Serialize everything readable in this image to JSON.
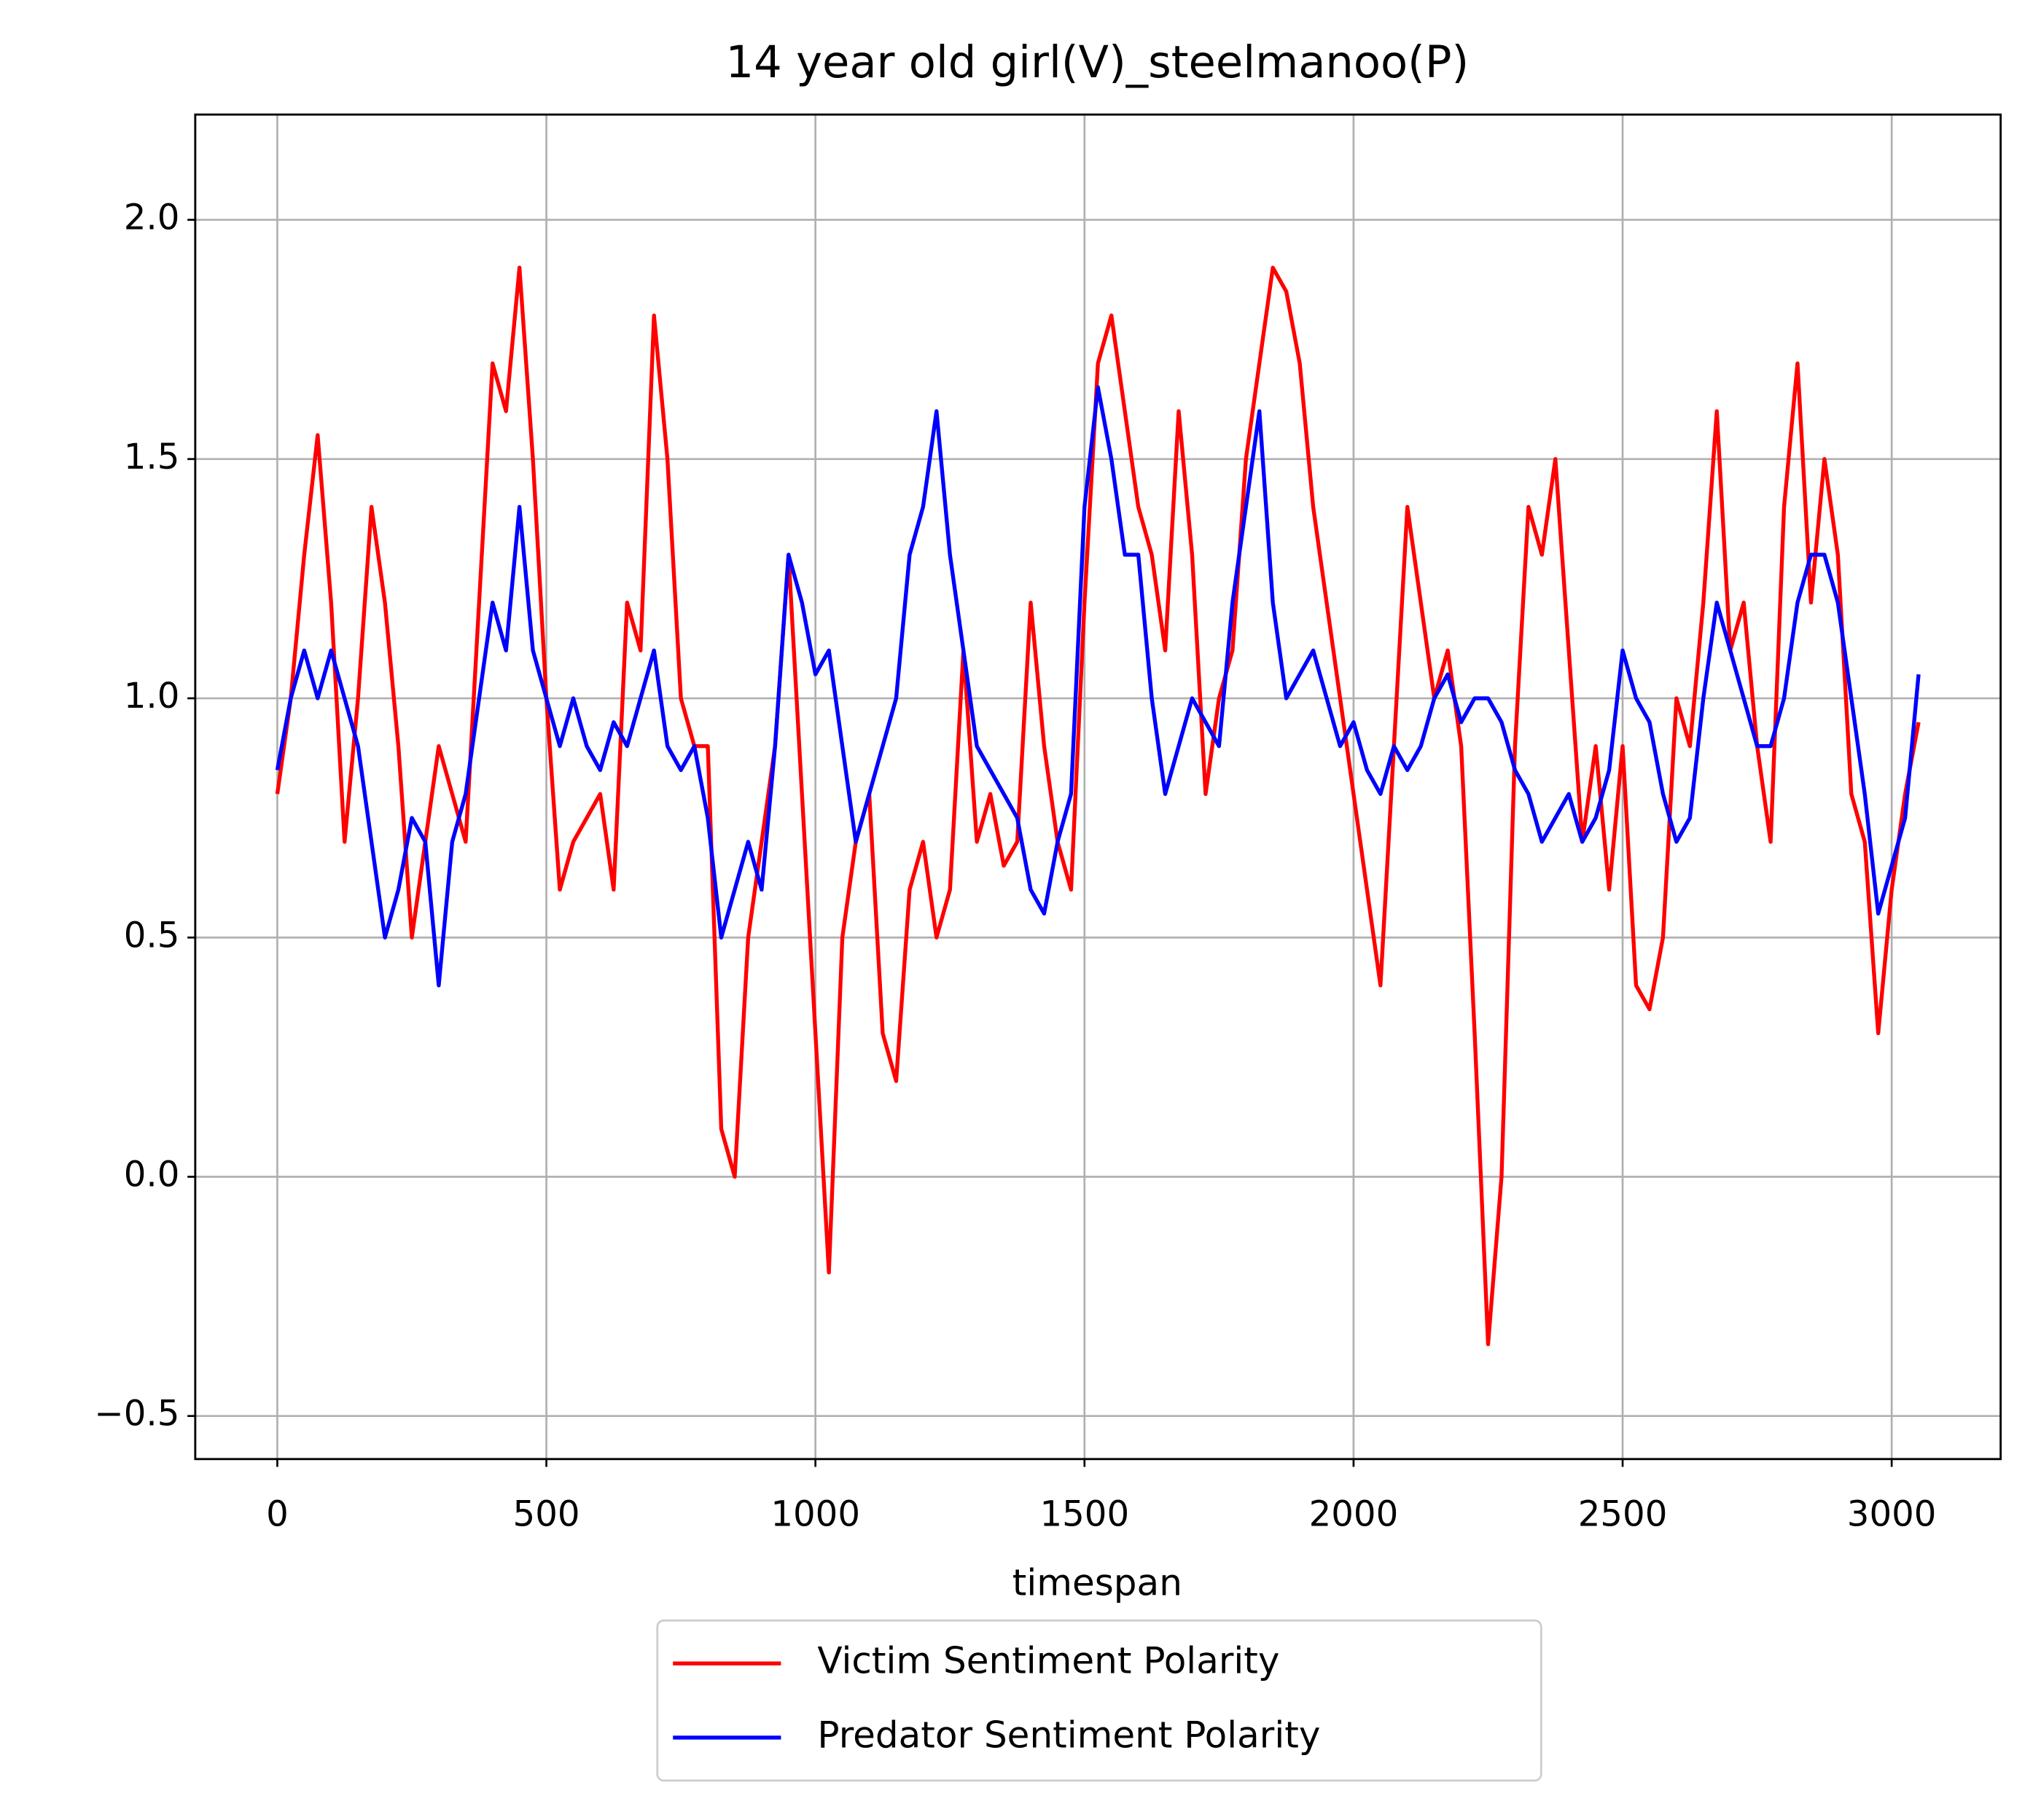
{
  "chart_data": {
    "type": "line",
    "title": "14 year old girl(V)_steelmanoo(P)",
    "x_label": "timespan",
    "x": [
      0,
      25,
      50,
      75,
      100,
      125,
      150,
      175,
      200,
      225,
      250,
      275,
      300,
      325,
      350,
      375,
      400,
      425,
      450,
      475,
      500,
      525,
      550,
      575,
      600,
      625,
      650,
      675,
      700,
      725,
      750,
      775,
      800,
      825,
      850,
      875,
      900,
      925,
      950,
      975,
      1000,
      1025,
      1050,
      1075,
      1100,
      1125,
      1150,
      1175,
      1200,
      1225,
      1250,
      1275,
      1300,
      1325,
      1350,
      1375,
      1400,
      1425,
      1450,
      1475,
      1500,
      1525,
      1550,
      1575,
      1600,
      1625,
      1650,
      1675,
      1700,
      1725,
      1750,
      1775,
      1800,
      1825,
      1850,
      1875,
      1900,
      1925,
      1950,
      1975,
      2000,
      2025,
      2050,
      2075,
      2100,
      2125,
      2150,
      2175,
      2200,
      2225,
      2250,
      2275,
      2300,
      2325,
      2350,
      2375,
      2400,
      2425,
      2450,
      2475,
      2500,
      2525,
      2550,
      2575,
      2600,
      2625,
      2650,
      2675,
      2700,
      2725,
      2750,
      2775,
      2800,
      2825,
      2850,
      2875,
      2900,
      2925,
      2950,
      2975,
      3000,
      3025,
      3050
    ],
    "series": [
      {
        "name": "Victim Sentiment Polarity",
        "color": "#ff0000",
        "values": [
          0.8,
          1.0,
          1.3,
          1.55,
          1.2,
          0.7,
          1.0,
          1.4,
          1.2,
          0.9,
          0.5,
          0.7,
          0.9,
          0.8,
          0.7,
          1.2,
          1.7,
          1.6,
          1.9,
          1.5,
          1.0,
          0.6,
          0.7,
          0.75,
          0.8,
          0.6,
          1.2,
          1.1,
          1.8,
          1.5,
          1.0,
          0.9,
          0.9,
          0.1,
          0.0,
          0.5,
          0.7,
          0.9,
          1.3,
          0.8,
          0.3,
          -0.2,
          0.5,
          0.7,
          0.8,
          0.3,
          0.2,
          0.6,
          0.7,
          0.5,
          0.6,
          1.1,
          0.7,
          0.8,
          0.65,
          0.7,
          1.2,
          0.9,
          0.7,
          0.6,
          1.2,
          1.7,
          1.8,
          1.6,
          1.4,
          1.3,
          1.1,
          1.6,
          1.3,
          0.8,
          1.0,
          1.1,
          1.5,
          1.7,
          1.9,
          1.85,
          1.7,
          1.4,
          1.2,
          1.0,
          0.8,
          0.6,
          0.4,
          0.9,
          1.4,
          1.2,
          1.0,
          1.1,
          0.9,
          0.3,
          -0.35,
          0.0,
          0.9,
          1.4,
          1.3,
          1.5,
          1.1,
          0.7,
          0.9,
          0.6,
          0.9,
          0.4,
          0.35,
          0.5,
          1.0,
          0.9,
          1.2,
          1.6,
          1.1,
          1.2,
          0.9,
          0.7,
          1.4,
          1.7,
          1.2,
          1.5,
          1.3,
          0.8,
          0.7,
          0.3,
          0.6,
          0.8,
          0.95
        ]
      },
      {
        "name": "Predator Sentiment Polarity",
        "color": "#0000ff",
        "values": [
          0.85,
          1.0,
          1.1,
          1.0,
          1.1,
          1.0,
          0.9,
          0.7,
          0.5,
          0.6,
          0.75,
          0.7,
          0.4,
          0.7,
          0.8,
          1.0,
          1.2,
          1.1,
          1.4,
          1.1,
          1.0,
          0.9,
          1.0,
          0.9,
          0.85,
          0.95,
          0.9,
          1.0,
          1.1,
          0.9,
          0.85,
          0.9,
          0.75,
          0.5,
          0.6,
          0.7,
          0.6,
          0.9,
          1.3,
          1.2,
          1.05,
          1.1,
          0.9,
          0.7,
          0.8,
          0.9,
          1.0,
          1.3,
          1.4,
          1.6,
          1.3,
          1.1,
          0.9,
          0.85,
          0.8,
          0.75,
          0.6,
          0.55,
          0.7,
          0.8,
          1.4,
          1.65,
          1.5,
          1.3,
          1.3,
          1.0,
          0.8,
          0.9,
          1.0,
          0.95,
          0.9,
          1.2,
          1.4,
          1.6,
          1.2,
          1.0,
          1.05,
          1.1,
          1.0,
          0.9,
          0.95,
          0.85,
          0.8,
          0.9,
          0.85,
          0.9,
          1.0,
          1.05,
          0.95,
          1.0,
          1.0,
          0.95,
          0.85,
          0.8,
          0.7,
          0.75,
          0.8,
          0.7,
          0.75,
          0.85,
          1.1,
          1.0,
          0.95,
          0.8,
          0.7,
          0.75,
          1.0,
          1.2,
          1.1,
          1.0,
          0.9,
          0.9,
          1.0,
          1.2,
          1.3,
          1.3,
          1.2,
          1.0,
          0.8,
          0.55,
          0.65,
          0.75,
          1.05
        ]
      }
    ],
    "xlim": [
      -152.5,
      3202.5
    ],
    "xticks": [
      0,
      500,
      1000,
      1500,
      2000,
      2500,
      3000
    ],
    "ylim": [
      -0.59,
      2.22
    ],
    "yticks": [
      {
        "value": -0.5,
        "label": "−0.5"
      },
      {
        "value": 0,
        "label": "0.0"
      },
      0.5,
      {
        "value": 1,
        "label": "1.0"
      },
      1.5,
      {
        "value": 2,
        "label": "2.0"
      }
    ],
    "grid": true,
    "legend": "below"
  }
}
